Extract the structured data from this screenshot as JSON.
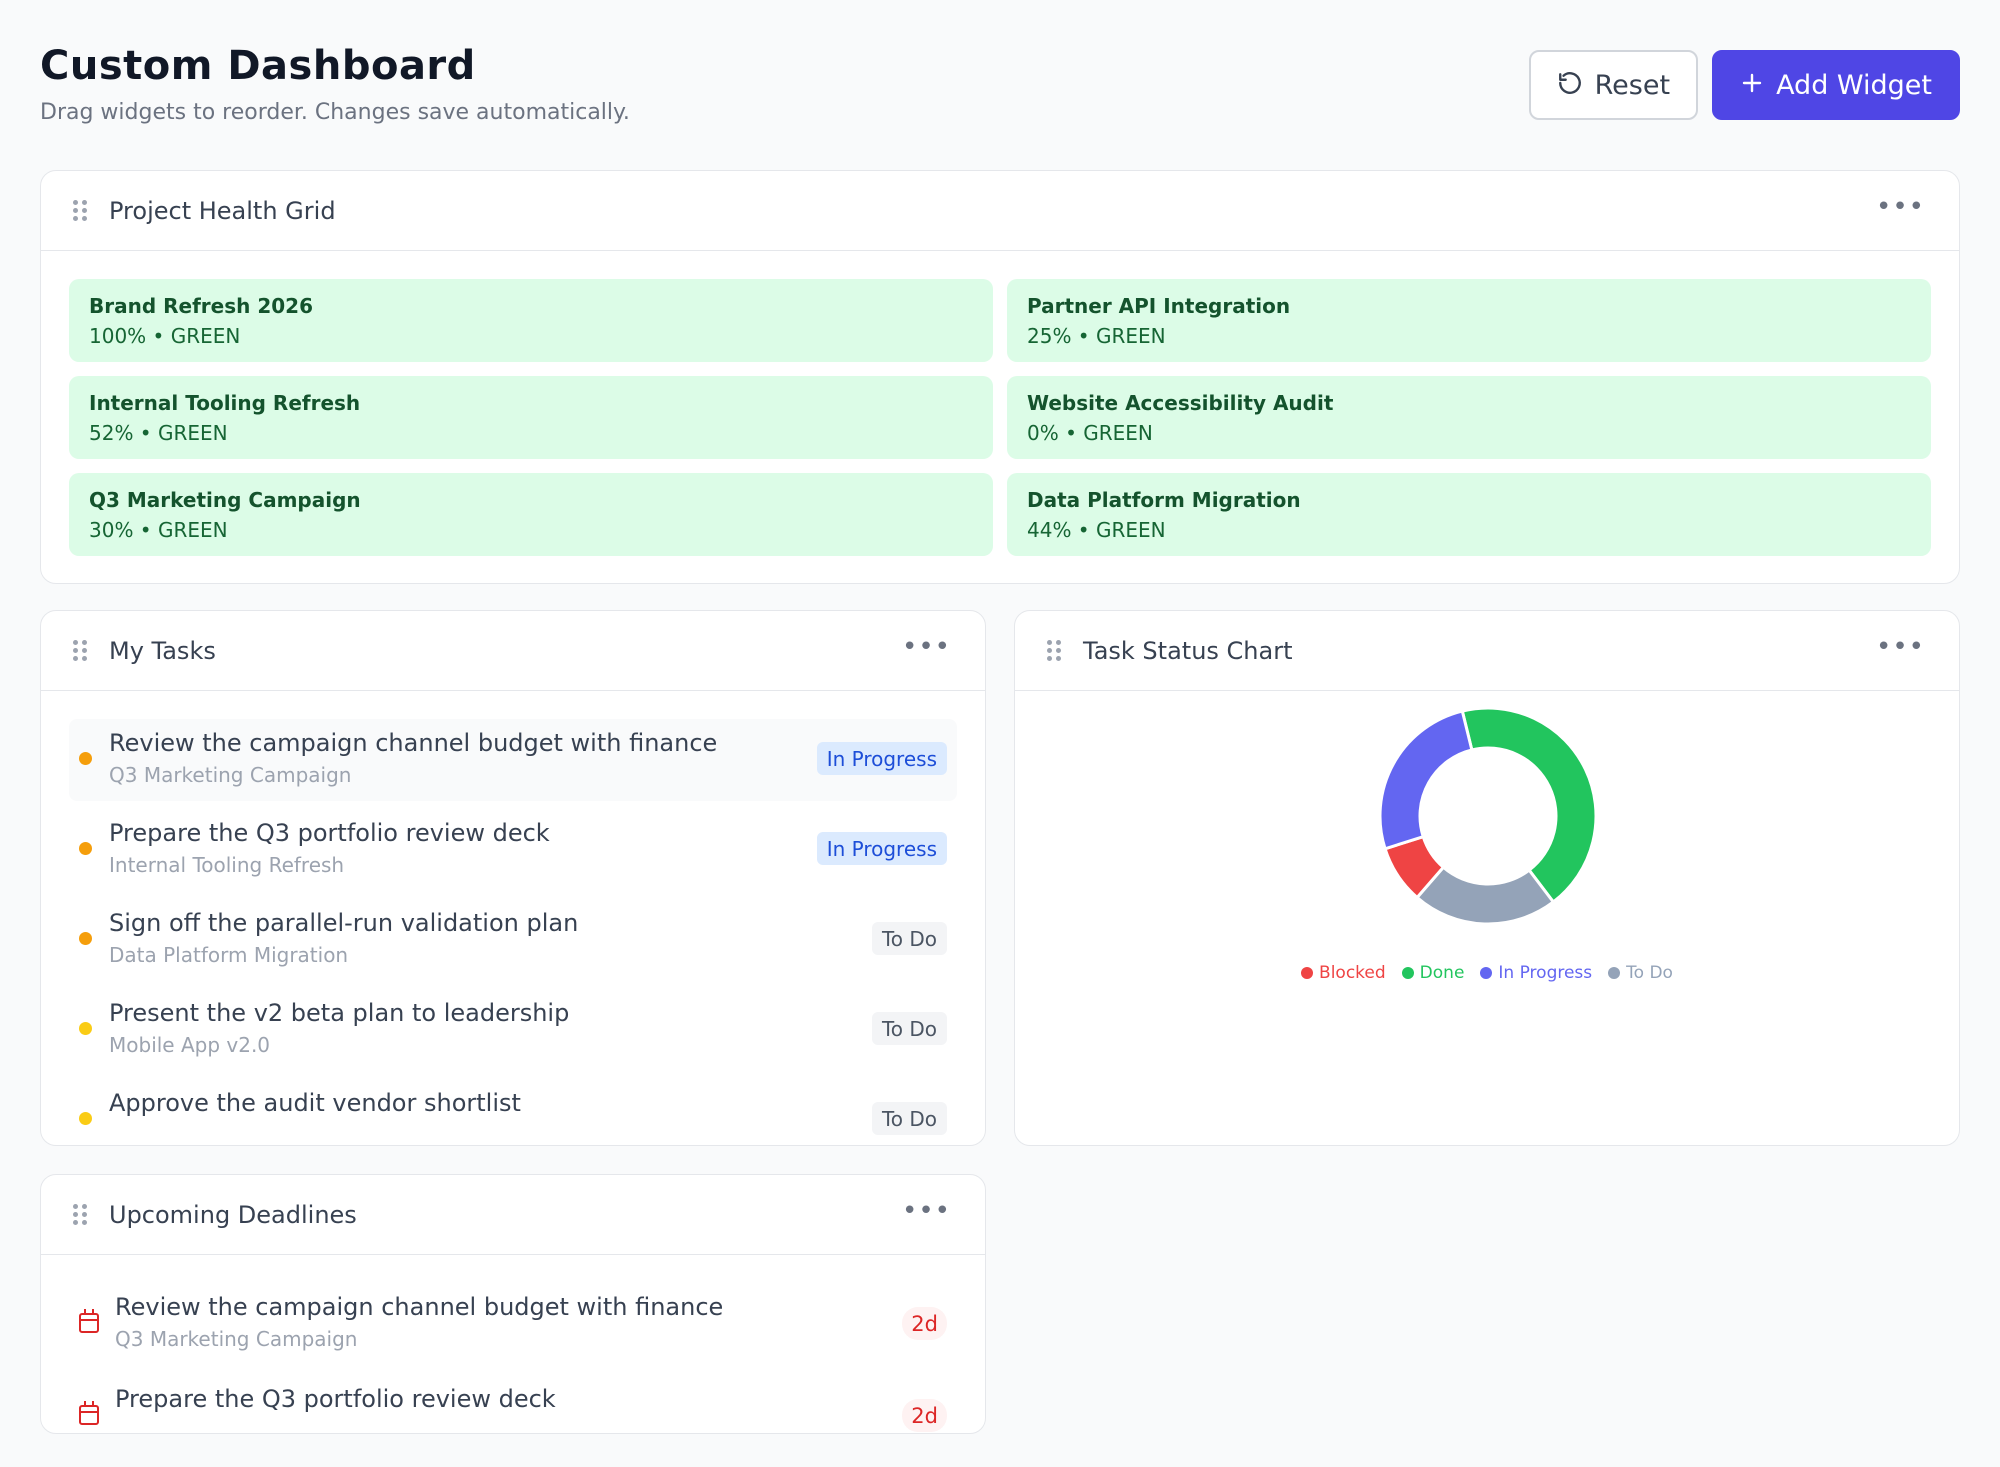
{
  "header": {
    "title": "Custom Dashboard",
    "subtitle": "Drag widgets to reorder. Changes save automatically.",
    "reset_label": "Reset",
    "reset_icon": "refresh-icon",
    "add_label": "Add Widget",
    "add_icon": "plus-icon",
    "accent_color": "#4f46e5"
  },
  "health": {
    "title": "Project Health Grid",
    "menu": "•••",
    "cards": [
      {
        "name": "Brand Refresh 2026",
        "meta": "100% • GREEN"
      },
      {
        "name": "Partner API Integration",
        "meta": "25% • GREEN"
      },
      {
        "name": "Internal Tooling Refresh",
        "meta": "52% • GREEN"
      },
      {
        "name": "Website Accessibility Audit",
        "meta": "0% • GREEN"
      },
      {
        "name": "Q3 Marketing Campaign",
        "meta": "30% • GREEN"
      },
      {
        "name": "Data Platform Migration",
        "meta": "44% • GREEN"
      }
    ]
  },
  "tasks": {
    "title": "My Tasks",
    "menu": "•••",
    "items": [
      {
        "title": "Review the campaign channel budget with finance",
        "project": "Q3 Marketing Campaign",
        "status": "In Progress",
        "dot": "#f59e0b"
      },
      {
        "title": "Prepare the Q3 portfolio review deck",
        "project": "Internal Tooling Refresh",
        "status": "In Progress",
        "dot": "#f59e0b"
      },
      {
        "title": "Sign off the parallel-run validation plan",
        "project": "Data Platform Migration",
        "status": "To Do",
        "dot": "#f59e0b"
      },
      {
        "title": "Present the v2 beta plan to leadership",
        "project": "Mobile App v2.0",
        "status": "To Do",
        "dot": "#facc15"
      },
      {
        "title": "Approve the audit vendor shortlist",
        "project": "",
        "status": "To Do",
        "dot": "#facc15"
      }
    ]
  },
  "chart": {
    "title": "Task Status Chart",
    "menu": "•••"
  },
  "chart_data": {
    "type": "pie",
    "categories": [
      "Blocked",
      "Done",
      "In Progress",
      "To Do"
    ],
    "values": [
      1,
      5,
      3,
      2.5
    ],
    "colors": [
      "#ef4444",
      "#22c55e",
      "#6366f1",
      "#94a3b8"
    ],
    "donut": true,
    "legend": "bottom"
  },
  "deadlines": {
    "title": "Upcoming Deadlines",
    "menu": "•••",
    "items": [
      {
        "title": "Review the campaign channel budget with finance",
        "project": "Q3 Marketing Campaign",
        "due": "2d"
      },
      {
        "title": "Prepare the Q3 portfolio review deck",
        "project": "",
        "due": "2d"
      }
    ]
  }
}
